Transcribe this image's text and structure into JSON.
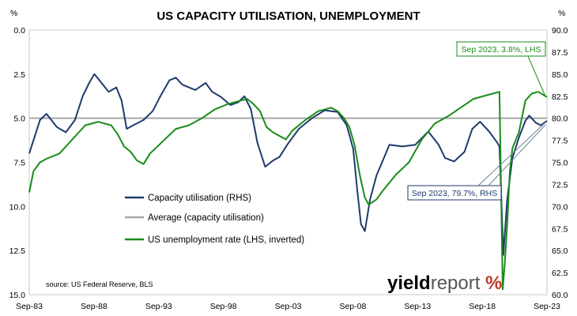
{
  "chart_data": {
    "type": "line",
    "title": "US CAPACITY UTILISATION, UNEMPLOYMENT",
    "left_unit": "%",
    "right_unit": "%",
    "x_ticks": [
      "Sep-83",
      "Sep-88",
      "Sep-93",
      "Sep-98",
      "Sep-03",
      "Sep-08",
      "Sep-13",
      "Sep-18",
      "Sep-23"
    ],
    "x_range": [
      1983.67,
      2023.67
    ],
    "y_left": {
      "min": 0,
      "max": 15,
      "inverted": true,
      "ticks": [
        "0.0",
        "2.5",
        "5.0",
        "7.5",
        "10.0",
        "12.5",
        "15.0"
      ]
    },
    "y_right": {
      "min": 60,
      "max": 90,
      "ticks": [
        "90.0",
        "87.5",
        "85.0",
        "82.5",
        "80.0",
        "77.5",
        "75.0",
        "72.5",
        "70.0",
        "67.5",
        "65.0",
        "62.5",
        "60.0"
      ]
    },
    "average_line": 80.0,
    "series": [
      {
        "name": "Capacity utilisation (RHS)",
        "axis": "right",
        "color": "#1f3a6e",
        "x": [
          1983.67,
          1984.5,
          1985,
          1985.8,
          1986.5,
          1987.2,
          1987.8,
          1988.3,
          1988.7,
          1989.2,
          1989.8,
          1990.4,
          1990.8,
          1991.2,
          1991.7,
          1992.5,
          1993.2,
          1993.8,
          1994.5,
          1995.0,
          1995.5,
          1996.5,
          1997.3,
          1997.8,
          1998.5,
          1999.2,
          1999.8,
          2000.3,
          2000.8,
          2001.3,
          2001.9,
          2002.5,
          2003.0,
          2003.6,
          2004.5,
          2005.5,
          2006.5,
          2007.5,
          2008.2,
          2008.7,
          2009.0,
          2009.3,
          2009.6,
          2010.0,
          2010.5,
          2011.5,
          2012.5,
          2013.5,
          2014.5,
          2015.3,
          2015.8,
          2016.5,
          2017.3,
          2017.9,
          2018.5,
          2019.2,
          2019.8,
          2020.0,
          2020.3,
          2020.6,
          2021.0,
          2021.5,
          2022.0,
          2022.3,
          2022.8,
          2023.2,
          2023.67
        ],
        "values": [
          76.0,
          79.8,
          80.5,
          79.0,
          78.4,
          79.8,
          82.5,
          84.0,
          85.0,
          84.1,
          83.0,
          83.5,
          82.0,
          78.8,
          79.2,
          79.8,
          80.8,
          82.5,
          84.3,
          84.6,
          83.8,
          83.2,
          84.0,
          83.0,
          82.4,
          81.5,
          81.8,
          82.5,
          81.0,
          77.2,
          74.5,
          75.2,
          75.6,
          77.0,
          78.8,
          80.0,
          80.9,
          80.7,
          79.2,
          76.5,
          72.0,
          68.0,
          67.2,
          70.8,
          73.5,
          77.0,
          76.8,
          77.0,
          78.5,
          77.0,
          75.5,
          75.1,
          76.2,
          78.8,
          79.6,
          78.5,
          77.3,
          76.8,
          64.5,
          70.8,
          75.5,
          77.8,
          79.7,
          80.3,
          79.5,
          79.2,
          79.7
        ]
      },
      {
        "name": "US unemployment rate (LHS, inverted)",
        "axis": "left",
        "color": "#1a8c1a",
        "x": [
          1983.67,
          1984.0,
          1984.5,
          1985.0,
          1986.0,
          1987.0,
          1988.0,
          1989.0,
          1989.5,
          1990.0,
          1990.5,
          1991.0,
          1991.5,
          1992.0,
          1992.5,
          1993.0,
          1994.0,
          1995.0,
          1996.0,
          1997.0,
          1998.0,
          1999.0,
          2000.0,
          2000.5,
          2001.0,
          2001.5,
          2002.0,
          2002.5,
          2003.0,
          2003.5,
          2004.0,
          2005.0,
          2006.0,
          2007.0,
          2007.5,
          2008.0,
          2008.4,
          2008.8,
          2009.2,
          2009.6,
          2009.9,
          2010.5,
          2011.0,
          2012.0,
          2013.0,
          2014.0,
          2015.0,
          2016.0,
          2017.0,
          2018.0,
          2019.0,
          2019.5,
          2020.0,
          2020.25,
          2020.4,
          2020.6,
          2020.8,
          2021.0,
          2021.5,
          2022.0,
          2022.5,
          2023.0,
          2023.67
        ],
        "values": [
          9.2,
          8.0,
          7.5,
          7.3,
          7.0,
          6.2,
          5.4,
          5.2,
          5.3,
          5.4,
          5.9,
          6.6,
          6.9,
          7.4,
          7.6,
          7.0,
          6.3,
          5.6,
          5.4,
          5.0,
          4.5,
          4.2,
          4.0,
          3.9,
          4.2,
          4.6,
          5.5,
          5.8,
          6.0,
          6.2,
          5.7,
          5.1,
          4.6,
          4.4,
          4.6,
          5.0,
          5.5,
          6.5,
          8.2,
          9.5,
          9.9,
          9.6,
          9.1,
          8.2,
          7.5,
          6.2,
          5.3,
          4.9,
          4.4,
          3.9,
          3.7,
          3.6,
          3.5,
          14.7,
          13.3,
          11.0,
          8.0,
          6.7,
          5.8,
          4.0,
          3.6,
          3.5,
          3.8
        ]
      }
    ],
    "legend": [
      {
        "label": "Capacity utilisation (RHS)",
        "color": "#1f3a6e"
      },
      {
        "label": "Average (capacity utilisation)",
        "color": "#a6a6a6"
      },
      {
        "label": "US unemployment rate (LHS, inverted)",
        "color": "#1a8c1a"
      }
    ],
    "annotations": [
      {
        "text": "Sep 2023, 3.8%, LHS",
        "color": "#1a8c1a"
      },
      {
        "text": "Sep 2023, 79.7%, RHS",
        "color": "#1f3a6e"
      }
    ],
    "source": "source: US Federal Reserve, BLS",
    "logo": {
      "word1": "yield",
      "word2": "report",
      "word3": "%",
      "color_dark": "#000000",
      "color_light": "#555555",
      "color_accent": "#c0392b"
    },
    "grid": false
  }
}
